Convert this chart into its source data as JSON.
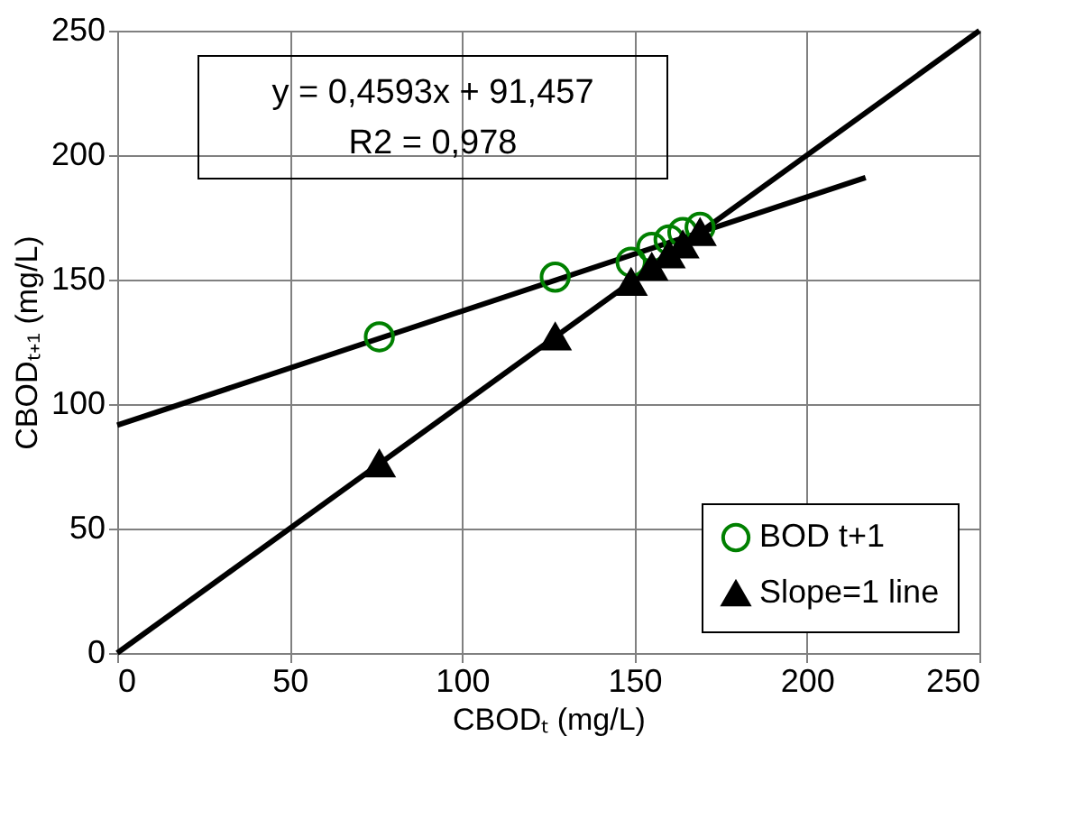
{
  "chart_data": {
    "type": "scatter",
    "xlabel": "CBODₜ (mg/L)",
    "ylabel": "CBODₜ₊₁ (mg/L)",
    "annotations": [
      "y = 0,4593x + 91,457",
      "R2 = 0,978"
    ],
    "series": [
      {
        "name": "BOD t+1",
        "marker": "circle",
        "color": "#008000",
        "x": [
          76,
          127,
          149,
          155,
          160,
          164,
          169
        ],
        "values": [
          127,
          151,
          157,
          163,
          166,
          169,
          171
        ]
      },
      {
        "name": "Slope=1 line",
        "marker": "triangle",
        "color": "#000000",
        "x": [
          76,
          127,
          149,
          155,
          160,
          164,
          169
        ],
        "values": [
          76,
          127,
          149,
          155,
          160,
          164,
          169
        ]
      },
      {
        "type": "line",
        "marker": "none",
        "color": "#000000",
        "x": [
          0,
          250
        ],
        "values": [
          0,
          250
        ]
      },
      {
        "type": "line",
        "marker": "none",
        "color": "#000000",
        "x": [
          0,
          217
        ],
        "values": [
          91.5,
          191
        ]
      }
    ],
    "xlim": [
      0,
      250
    ],
    "ylim": [
      0,
      250
    ],
    "xticks": [
      0,
      50,
      100,
      150,
      200,
      250
    ],
    "yticks": [
      0,
      50,
      100,
      150,
      200,
      250
    ],
    "grid": true,
    "legend": "bottom right"
  }
}
